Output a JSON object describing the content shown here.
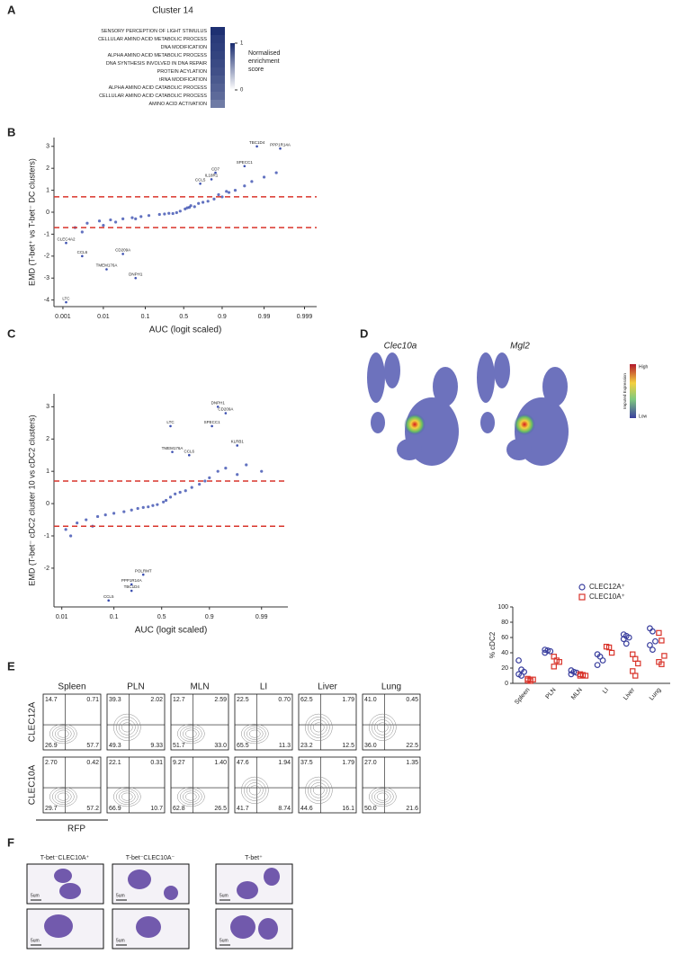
{
  "panel_labels": [
    "A",
    "B",
    "C",
    "D",
    "E",
    "F"
  ],
  "panel_a": {
    "title": "Cluster 14",
    "terms": [
      "SENSORY PERCEPTION OF LIGHT STIMULUS",
      "CELLULAR AMINO ACID METABOLIC PROCESS",
      "DNA MODIFICATION",
      "ALPHA AMINO ACID METABOLIC PROCESS",
      "DNA SYNTHESIS INVOLVED IN DNA REPAIR",
      "PROTEIN ACYLATION",
      "tRNA MODIFICATION",
      "ALPHA AMINO ACID CATABOLIC PROCESS",
      "CELLULAR AMINO ACID CATABOLIC PROCESS",
      "AMINO ACID ACTIVATION"
    ],
    "values": [
      0.97,
      0.92,
      0.9,
      0.88,
      0.85,
      0.82,
      0.78,
      0.74,
      0.7,
      0.62
    ],
    "lim": [
      0,
      1
    ],
    "ticks": [
      1,
      0
    ],
    "legend": [
      "Normalised",
      "enrichment",
      "score"
    ]
  },
  "panel_b": {
    "type": "scatter",
    "scale": "logit",
    "ylabel": "EMD (T-bet⁺ vs T-bet⁻ DC clusters)",
    "xlabel": "AUC (logit scaled)",
    "xlim": [
      0.0006,
      0.9995
    ],
    "xticks": [
      0.001,
      0.01,
      0.1,
      0.5,
      0.9,
      0.99,
      0.999
    ],
    "ylim": [
      -4.3,
      3.4
    ],
    "yticks": [
      3,
      2,
      1,
      0,
      -1,
      -2,
      -3,
      -4
    ],
    "thresholds": [
      0.7,
      -0.7
    ],
    "color": "#3b4fb0",
    "threshold_color": "#d9342b",
    "points": {
      "x": [
        0.002,
        0.004,
        0.008,
        0.015,
        0.03,
        0.05,
        0.08,
        0.12,
        0.2,
        0.3,
        0.4,
        0.45,
        0.55,
        0.6,
        0.7,
        0.8,
        0.85,
        0.9,
        0.93,
        0.95,
        0.97,
        0.98,
        0.99,
        0.995,
        0.02,
        0.06,
        0.25,
        0.65,
        0.75,
        0.88,
        0.003,
        0.01,
        0.35,
        0.52,
        0.58,
        0.92
      ],
      "y": [
        -0.7,
        -0.5,
        -0.4,
        -0.35,
        -0.3,
        -0.25,
        -0.2,
        -0.15,
        -0.1,
        -0.05,
        -0.02,
        0.05,
        0.2,
        0.3,
        0.4,
        0.5,
        0.6,
        0.7,
        0.9,
        1.0,
        1.2,
        1.4,
        1.6,
        1.8,
        -0.45,
        -0.3,
        -0.08,
        0.25,
        0.45,
        0.8,
        -0.9,
        -0.6,
        -0.06,
        0.15,
        0.22,
        0.95
      ]
    },
    "genes": [
      {
        "label": "TBC1D4",
        "x": 0.985,
        "y": 3.0
      },
      {
        "label": "PPP1R14A",
        "x": 0.996,
        "y": 2.9
      },
      {
        "label": "SPECC1",
        "x": 0.97,
        "y": 2.1
      },
      {
        "label": "CD7",
        "x": 0.86,
        "y": 1.8
      },
      {
        "label": "IL18R1",
        "x": 0.83,
        "y": 1.5
      },
      {
        "label": "CCL5",
        "x": 0.72,
        "y": 1.3
      },
      {
        "label": "CLEC4A2",
        "x": 0.0012,
        "y": -1.4
      },
      {
        "label": "CCL6",
        "x": 0.003,
        "y": -2.0
      },
      {
        "label": "CD209A",
        "x": 0.03,
        "y": -1.9
      },
      {
        "label": "TMEM176A",
        "x": 0.012,
        "y": -2.6
      },
      {
        "label": "DNPH1",
        "x": 0.06,
        "y": -3.0
      },
      {
        "label": "LTC",
        "x": 0.0012,
        "y": -4.1
      }
    ]
  },
  "panel_c": {
    "type": "scatter",
    "scale": "logit",
    "ylabel": "EMD (T-bet⁻ cDC2 cluster 10 vs cDC2 clusters)",
    "xlabel": "AUC (logit scaled)",
    "xlim": [
      0.007,
      0.997
    ],
    "xticks": [
      0.01,
      0.1,
      0.5,
      0.9,
      0.99
    ],
    "ylim": [
      -3.2,
      3.4
    ],
    "yticks": [
      3,
      2,
      1,
      0,
      -1,
      -2
    ],
    "thresholds": [
      0.7,
      -0.7
    ],
    "color": "#3b4fb0",
    "threshold_color": "#d9342b",
    "points": {
      "x": [
        0.012,
        0.02,
        0.03,
        0.05,
        0.07,
        0.1,
        0.15,
        0.2,
        0.3,
        0.4,
        0.45,
        0.55,
        0.6,
        0.7,
        0.8,
        0.85,
        0.9,
        0.93,
        0.95,
        0.97,
        0.98,
        0.99,
        0.015,
        0.04,
        0.25,
        0.35,
        0.65,
        0.75,
        0.88,
        0.52
      ],
      "y": [
        -0.8,
        -0.6,
        -0.5,
        -0.4,
        -0.35,
        -0.3,
        -0.25,
        -0.2,
        -0.12,
        -0.06,
        -0.03,
        0.1,
        0.2,
        0.35,
        0.5,
        0.6,
        0.8,
        1.0,
        1.1,
        0.9,
        1.2,
        1.0,
        -1.0,
        -0.7,
        -0.15,
        -0.1,
        0.3,
        0.4,
        0.7,
        0.05
      ]
    },
    "genes": [
      {
        "label": "DNPH1",
        "x": 0.93,
        "y": 3.0
      },
      {
        "label": "CD209A",
        "x": 0.95,
        "y": 2.8
      },
      {
        "label": "SPECC1",
        "x": 0.91,
        "y": 2.4
      },
      {
        "label": "LTC",
        "x": 0.6,
        "y": 2.4
      },
      {
        "label": "KLRB1",
        "x": 0.97,
        "y": 1.8
      },
      {
        "label": "CCL6",
        "x": 0.78,
        "y": 1.5
      },
      {
        "label": "TMEM176A",
        "x": 0.62,
        "y": 1.6
      },
      {
        "label": "POLRMT",
        "x": 0.3,
        "y": -2.2
      },
      {
        "label": "PPP1R14A",
        "x": 0.2,
        "y": -2.5
      },
      {
        "label": "TBC1D4",
        "x": 0.2,
        "y": -2.7
      },
      {
        "label": "CCL5",
        "x": 0.08,
        "y": -3.0
      }
    ]
  },
  "panel_d": {
    "titles": [
      "Clec10a",
      "Mgl2"
    ],
    "high": "High",
    "low": "Low",
    "colorbar_label": "Imputed Expression"
  },
  "panel_e": {
    "columns": [
      "Spleen",
      "PLN",
      "MLN",
      "LI",
      "Liver",
      "Lung"
    ],
    "rows": [
      "CLEC12A",
      "CLEC10A"
    ],
    "xlabel": "RFP",
    "quadrants": [
      [
        [
          "14.7",
          "0.71",
          "26.9",
          "57.7"
        ],
        [
          "39.3",
          "2.02",
          "49.3",
          "9.33"
        ],
        [
          "12.7",
          "2.59",
          "51.7",
          "33.0"
        ],
        [
          "22.5",
          "0.70",
          "65.5",
          "11.3"
        ],
        [
          "62.5",
          "1.79",
          "23.2",
          "12.5"
        ],
        [
          "41.0",
          "0.45",
          "36.0",
          "22.5"
        ]
      ],
      [
        [
          "2.70",
          "0.42",
          "29.7",
          "57.2"
        ],
        [
          "22.1",
          "0.31",
          "66.9",
          "10.7"
        ],
        [
          "9.27",
          "1.40",
          "62.8",
          "26.5"
        ],
        [
          "47.6",
          "1.94",
          "41.7",
          "8.74"
        ],
        [
          "37.5",
          "1.79",
          "44.6",
          "16.1"
        ],
        [
          "27.0",
          "1.35",
          "50.0",
          "21.6"
        ]
      ]
    ],
    "dotplot": {
      "type": "dot",
      "ylabel": "% cDC2",
      "ylim": [
        0,
        100
      ],
      "yticks": [
        0,
        20,
        40,
        60,
        80,
        100
      ],
      "categories": [
        "Spleen",
        "PLN",
        "MLN",
        "LI",
        "Liver",
        "Lung"
      ],
      "series": [
        {
          "name": "CLEC12A⁺",
          "color": "#3a3f9e",
          "values": [
            [
              30,
              18,
              15,
              12,
              10
            ],
            [
              44,
              43,
              42,
              40
            ],
            [
              17,
              15,
              14,
              12
            ],
            [
              38,
              35,
              30,
              24
            ],
            [
              64,
              62,
              60,
              58,
              52
            ],
            [
              72,
              68,
              55,
              50,
              44
            ]
          ]
        },
        {
          "name": "CLEC10A⁺",
          "color": "#d9342b",
          "values": [
            [
              6,
              5,
              5,
              4,
              3
            ],
            [
              35,
              30,
              28,
              22
            ],
            [
              12,
              11,
              10,
              10
            ],
            [
              48,
              47,
              40
            ],
            [
              38,
              32,
              26,
              16,
              10
            ],
            [
              66,
              56,
              36,
              28,
              25
            ]
          ]
        }
      ]
    }
  },
  "panel_f": {
    "titles": [
      "T-bet⁻CLEC10A⁺",
      "T-bet⁻CLEC10A⁻",
      "T-bet⁺"
    ],
    "scale": "5um"
  }
}
